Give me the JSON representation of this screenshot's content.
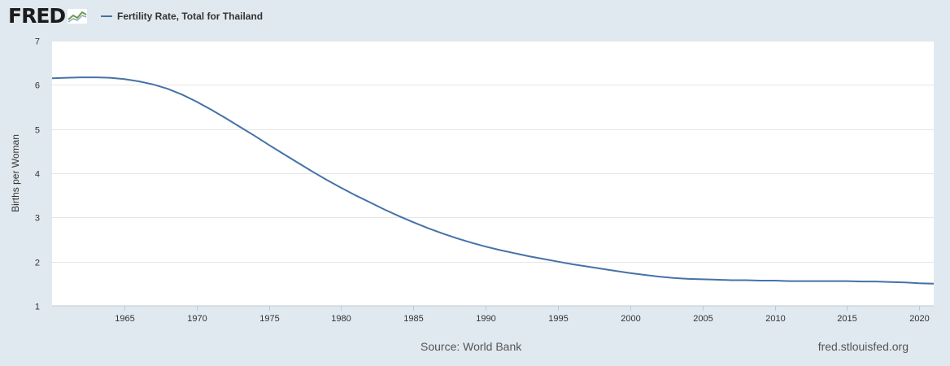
{
  "header": {
    "logo_text": "FRED",
    "legend_label": "Fertility Rate, Total for Thailand"
  },
  "footer": {
    "source": "Source: World Bank",
    "site": "fred.stlouisfed.org"
  },
  "colors": {
    "line": "#4572a7",
    "background": "#e1e9f0",
    "plot_background": "#ffffff",
    "grid": "#e6e6e6"
  },
  "chart_data": {
    "type": "line",
    "title": "",
    "xlabel": "",
    "ylabel": "Births per Woman",
    "xlim": [
      1960,
      2021
    ],
    "ylim": [
      1,
      7
    ],
    "grid": true,
    "legend": "top-left",
    "x_ticks": [
      1965,
      1970,
      1975,
      1980,
      1985,
      1990,
      1995,
      2000,
      2005,
      2010,
      2015,
      2020
    ],
    "y_ticks": [
      1,
      2,
      3,
      4,
      5,
      6,
      7
    ],
    "series": [
      {
        "name": "Fertility Rate, Total for Thailand",
        "x": [
          1960,
          1961,
          1962,
          1963,
          1964,
          1965,
          1966,
          1967,
          1968,
          1969,
          1970,
          1971,
          1972,
          1973,
          1974,
          1975,
          1976,
          1977,
          1978,
          1979,
          1980,
          1981,
          1982,
          1983,
          1984,
          1985,
          1986,
          1987,
          1988,
          1989,
          1990,
          1991,
          1992,
          1993,
          1994,
          1995,
          1996,
          1997,
          1998,
          1999,
          2000,
          2001,
          2002,
          2003,
          2004,
          2005,
          2006,
          2007,
          2008,
          2009,
          2010,
          2011,
          2012,
          2013,
          2014,
          2015,
          2016,
          2017,
          2018,
          2019,
          2020,
          2021
        ],
        "values": [
          6.15,
          6.16,
          6.17,
          6.17,
          6.16,
          6.13,
          6.08,
          6.01,
          5.91,
          5.78,
          5.62,
          5.44,
          5.25,
          5.05,
          4.85,
          4.64,
          4.44,
          4.24,
          4.04,
          3.85,
          3.67,
          3.5,
          3.34,
          3.18,
          3.03,
          2.89,
          2.76,
          2.64,
          2.53,
          2.43,
          2.34,
          2.26,
          2.19,
          2.12,
          2.06,
          2.0,
          1.94,
          1.89,
          1.84,
          1.79,
          1.74,
          1.7,
          1.66,
          1.63,
          1.61,
          1.6,
          1.59,
          1.58,
          1.58,
          1.57,
          1.57,
          1.56,
          1.56,
          1.56,
          1.56,
          1.56,
          1.55,
          1.55,
          1.54,
          1.53,
          1.51,
          1.5
        ]
      }
    ]
  }
}
